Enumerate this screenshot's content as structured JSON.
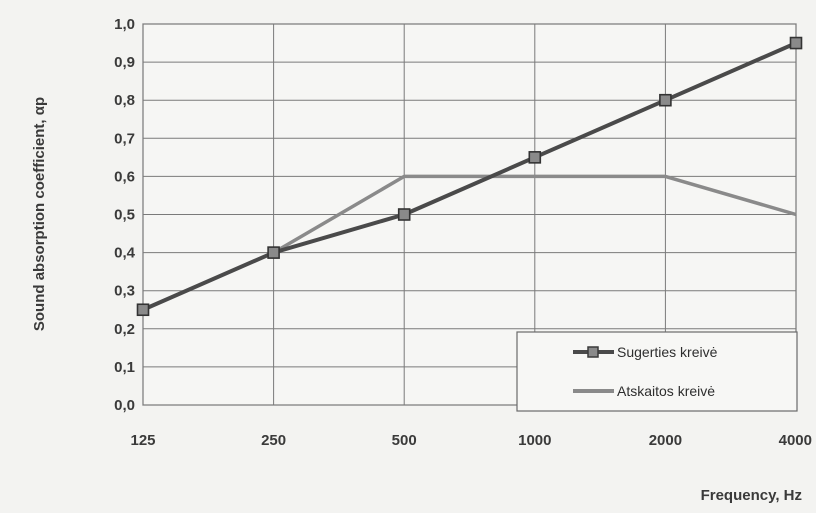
{
  "chart_data": {
    "type": "line",
    "title": "",
    "xlabel": "Frequency, Hz",
    "ylabel": "Sound absorption coefficient, αp",
    "categories": [
      "125",
      "250",
      "500",
      "1000",
      "2000",
      "4000"
    ],
    "y_ticks": [
      "0,0",
      "0,1",
      "0,2",
      "0,3",
      "0,4",
      "0,5",
      "0,6",
      "0,7",
      "0,8",
      "0,9",
      "1,0"
    ],
    "ylim": [
      0,
      1
    ],
    "grid": true,
    "legend_position": "bottom-right",
    "series": [
      {
        "name": "Sugerties kreivė",
        "values": [
          0.25,
          0.4,
          0.5,
          0.65,
          0.8,
          0.95
        ],
        "color": "#4a4a4a",
        "marker": "square"
      },
      {
        "name": "Atskaitos kreivė",
        "values": [
          null,
          0.4,
          0.6,
          0.6,
          0.6,
          0.5
        ],
        "color": "#8a8a8a",
        "marker": "none"
      }
    ]
  }
}
